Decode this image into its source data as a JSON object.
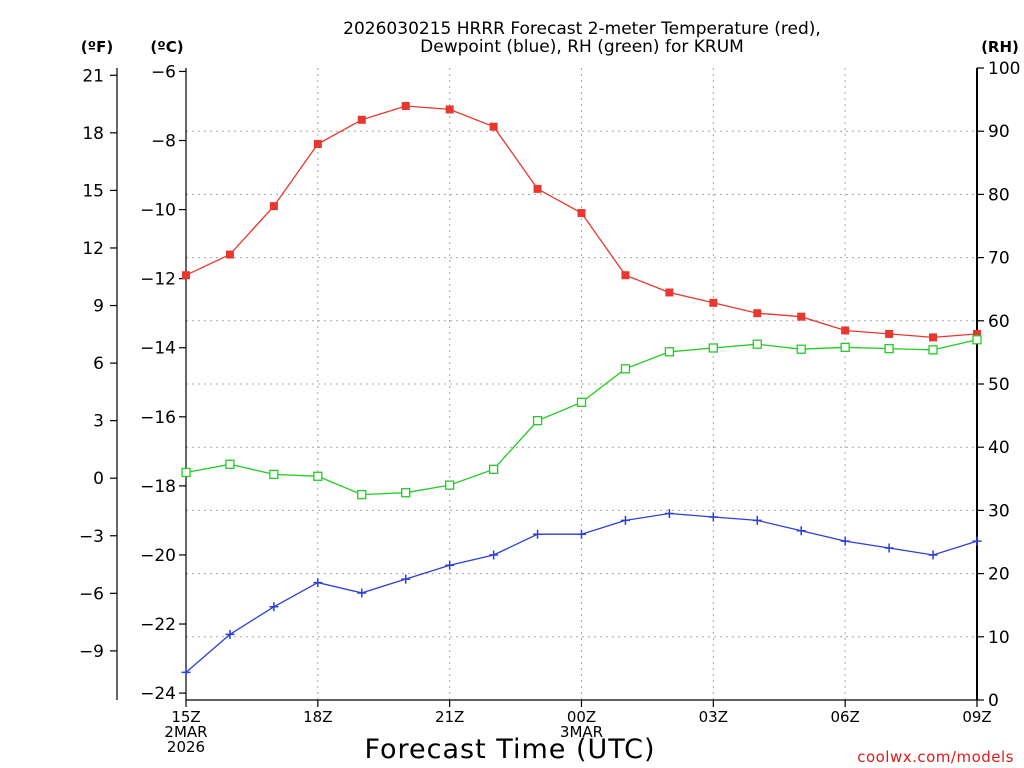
{
  "chart_data": {
    "type": "line",
    "title": [
      "2026030215 HRRR Forecast 2-meter Temperature (red),",
      "Dewpoint (blue), RH (green) for KRUM"
    ],
    "xlabel": "Forecast Time (UTC)",
    "watermark": "coolwx.com/models",
    "units": {
      "fahrenheit": "(ºF)",
      "celsius": "(ºC)",
      "rh": "(RH)"
    },
    "x_hours": [
      0,
      1,
      2,
      3,
      4,
      5,
      6,
      7,
      8,
      9,
      10,
      11,
      12,
      13,
      14,
      15,
      16,
      17,
      18
    ],
    "xlim": [
      0,
      18
    ],
    "x_ticks": [
      {
        "x": 0,
        "lines": [
          "15Z",
          "2MAR",
          "2026"
        ]
      },
      {
        "x": 3,
        "lines": [
          "18Z"
        ]
      },
      {
        "x": 6,
        "lines": [
          "21Z"
        ]
      },
      {
        "x": 9,
        "lines": [
          "00Z",
          "3MAR"
        ]
      },
      {
        "x": 12,
        "lines": [
          "03Z"
        ]
      },
      {
        "x": 15,
        "lines": [
          "06Z"
        ]
      },
      {
        "x": 18,
        "lines": [
          "09Z"
        ]
      }
    ],
    "celsius_axis": {
      "range": [
        -24.2,
        -5.9
      ],
      "ticks": [
        -6,
        -8,
        -10,
        -12,
        -14,
        -16,
        -18,
        -20,
        -22,
        -24
      ],
      "tick_labels": [
        "−6",
        "−8",
        "−10",
        "−12",
        "−14",
        "−16",
        "−18",
        "−20",
        "−22",
        "−24"
      ]
    },
    "fahrenheit_axis": {
      "ticks": [
        21,
        18,
        15,
        12,
        9,
        6,
        3,
        0,
        -3,
        -6,
        -9
      ],
      "tick_labels": [
        "21",
        "18",
        "15",
        "12",
        "9",
        "6",
        "3",
        "0",
        "−3",
        "−6",
        "−9"
      ]
    },
    "rh_axis": {
      "range": [
        0,
        100
      ],
      "ticks": [
        0,
        10,
        20,
        30,
        40,
        50,
        60,
        70,
        80,
        90,
        100
      ],
      "tick_labels": [
        "0",
        "10",
        "20",
        "30",
        "40",
        "50",
        "60",
        "70",
        "80",
        "90",
        "100"
      ]
    },
    "series": [
      {
        "name": "2-meter Temperature",
        "axis": "celsius",
        "color": "#e8372f",
        "marker": "filled-square",
        "values": [
          -11.9,
          -11.3,
          -9.9,
          -8.1,
          -7.4,
          -7.0,
          -7.1,
          -7.6,
          -9.4,
          -10.1,
          -11.9,
          -12.4,
          -12.7,
          -13.0,
          -13.1,
          -13.5,
          -13.6,
          -13.7,
          -13.6
        ]
      },
      {
        "name": "Dewpoint",
        "axis": "celsius",
        "color": "#2a3fdc",
        "marker": "plus",
        "values": [
          -23.4,
          -22.3,
          -21.5,
          -20.8,
          -21.1,
          -20.7,
          -20.3,
          -20.0,
          -19.4,
          -19.4,
          -19.0,
          -18.8,
          -18.9,
          -19.0,
          -19.3,
          -19.6,
          -19.8,
          -20.0,
          -19.6
        ]
      },
      {
        "name": "RH",
        "axis": "rh",
        "color": "#22cc22",
        "marker": "open-square",
        "values": [
          36.0,
          37.3,
          35.7,
          35.4,
          32.5,
          32.8,
          34.0,
          36.5,
          44.2,
          47.1,
          52.4,
          55.1,
          55.7,
          56.3,
          55.5,
          55.8,
          55.6,
          55.4,
          57.0
        ]
      }
    ]
  }
}
